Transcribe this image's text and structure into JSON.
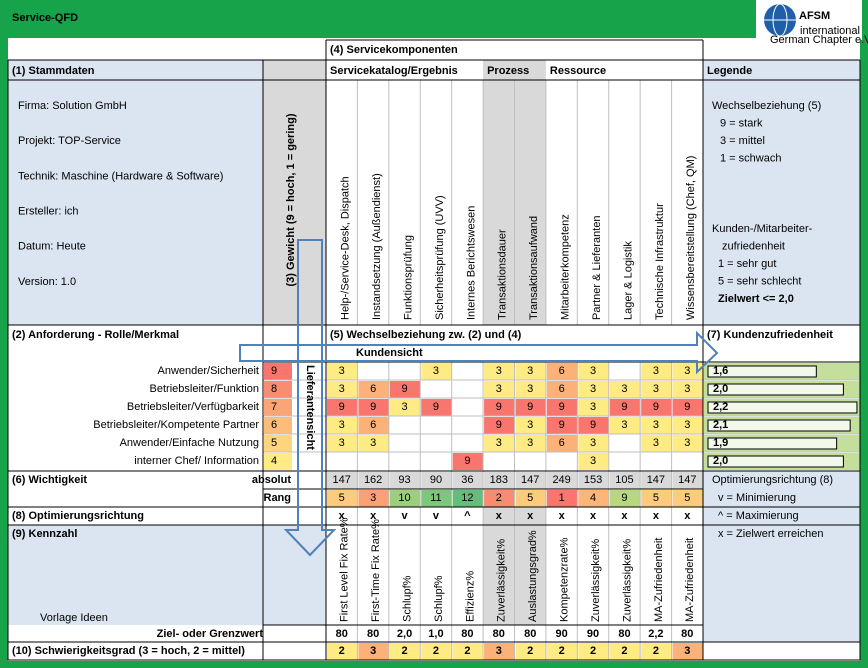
{
  "header": {
    "title": "Service-QFD",
    "logo": {
      "name": "AFSM",
      "line1": "international",
      "line2": "German Chapter e.V."
    }
  },
  "labels": {
    "stammdaten": "(1) Stammdaten",
    "anforderung": "(2) Anforderung - Rolle/Merkmal",
    "gewicht": "(3) Gewicht (9 = hoch, 1 = gering)",
    "servicekomponenten": "(4) Servicekomponenten",
    "wechselbeziehung": "(5) Wechselbeziehung zw. (2) und (4)",
    "wichtigkeit": "(6) Wichtigkeit",
    "absolut": "absolut",
    "rang": "Rang",
    "kundenzufriedenheit": "(7) Kundenzufriedenheit",
    "optimierungsrichtung": "(8) Optimierungsrichtung",
    "kennzahl": "(9) Kennzahl",
    "ziel": "Ziel- oder Grenzwert",
    "schwierigkeitsgrad": "(10) Schwierigkeitsgrad (3 = hoch, 2 = mittel)",
    "kundensicht": "Kundensicht",
    "lieferantensicht": "Lieferantensicht",
    "watermark": "Vorlage Ideen"
  },
  "stammdaten": [
    "Firma: Solution GmbH",
    "Projekt: TOP-Service",
    "Technik: Maschine (Hardware & Software)",
    "Ersteller: ich",
    "Datum: Heute",
    "Version: 1.0"
  ],
  "legend": {
    "title": "Legende",
    "wechsel": [
      "Wechselbeziehung (5)",
      "9 = stark",
      "3 = mittel",
      "1 = schwach"
    ],
    "zufriedenheit": [
      "Kunden-/Mitarbeiter-",
      "zufriedenheit",
      "1 = sehr gut",
      "5 = sehr schlecht"
    ],
    "zielwert": "Zielwert <= 2,0",
    "optimierung": [
      "Optimierungsrichtung (8)",
      "v = Minimierung",
      "^ = Maximierung",
      "x = Zielwert erreichen"
    ]
  },
  "groups": [
    {
      "name": "Servicekatalog/Ergebnis",
      "background": "#ffffff",
      "components": [
        "Help-/Service-Desk, Dispatch",
        "Instandsetzung (Außendienst)",
        "Funktionsprüfung",
        "Sicherheitsprüfung (UVV)",
        "Internes Berichtswesen"
      ]
    },
    {
      "name": "Prozess",
      "background": "#d9d9d9",
      "components": [
        "Transaktionsdauer",
        "Transaktionsaufwand"
      ]
    },
    {
      "name": "Ressource",
      "background": "#ffffff",
      "components": [
        "Mitarbeiterkompetenz",
        "Partner & Lieferanten",
        "Lager & Logistik",
        "Technische Infrastruktur",
        "Wissensbereitstellung (Chef, QM)"
      ]
    }
  ],
  "requirements": [
    {
      "name": "Anwender/Sicherheit",
      "weight": 9,
      "matrix": [
        3,
        null,
        null,
        3,
        null,
        3,
        3,
        6,
        3,
        null,
        3,
        3
      ],
      "satisfaction": {
        "value": 1.6,
        "label": "1,6"
      }
    },
    {
      "name": "Betriebsleiter/Funktion",
      "weight": 8,
      "matrix": [
        3,
        6,
        9,
        null,
        null,
        3,
        3,
        6,
        3,
        3,
        3,
        3
      ],
      "satisfaction": {
        "value": 2.0,
        "label": "2,0"
      }
    },
    {
      "name": "Betriebsleiter/Verfügbarkeit",
      "weight": 7,
      "matrix": [
        9,
        9,
        3,
        9,
        null,
        9,
        9,
        9,
        3,
        9,
        9,
        9
      ],
      "satisfaction": {
        "value": 2.2,
        "label": "2,2"
      }
    },
    {
      "name": "Betriebsleiter/Kompetente Partner",
      "weight": 6,
      "matrix": [
        3,
        6,
        null,
        null,
        null,
        9,
        3,
        9,
        9,
        3,
        3,
        3
      ],
      "satisfaction": {
        "value": 2.1,
        "label": "2,1"
      }
    },
    {
      "name": "Anwender/Einfache Nutzung",
      "weight": 5,
      "matrix": [
        3,
        3,
        null,
        null,
        null,
        3,
        3,
        6,
        3,
        null,
        3,
        3
      ],
      "satisfaction": {
        "value": 1.9,
        "label": "1,9"
      }
    },
    {
      "name": "interner Chef/ Information",
      "weight": 4,
      "matrix": [
        null,
        null,
        null,
        null,
        9,
        null,
        null,
        null,
        3,
        null,
        null,
        null
      ],
      "satisfaction": {
        "value": 2.0,
        "label": "2,0"
      }
    }
  ],
  "wichtigkeit": {
    "absolut": [
      147,
      162,
      93,
      90,
      36,
      183,
      147,
      249,
      153,
      105,
      147,
      147
    ],
    "rang": [
      5,
      3,
      10,
      11,
      12,
      2,
      5,
      1,
      4,
      9,
      5,
      5
    ]
  },
  "optimierung": [
    "x",
    "x",
    "v",
    "v",
    "^",
    "x",
    "x",
    "x",
    "x",
    "x",
    "x",
    "x"
  ],
  "kennzahlen": [
    "First Level Fix Rate%",
    "First-Time Fix Rate%",
    "Schlupf%",
    "Schlupf%",
    "Effizienz%",
    "Zuverlässigkeit%",
    "Auslastungsgrad%",
    "Kompetenzrate%",
    "Zuverlässigkeit%",
    "Zuverlässigkeit%",
    "MA-Zufriedenheit",
    "MA-Zufriedenheit"
  ],
  "ziel": [
    "80",
    "80",
    "2,0",
    "1,0",
    "80",
    "80",
    "80",
    "90",
    "90",
    "80",
    "2,2",
    "80"
  ],
  "schwierigkeit": [
    2,
    3,
    2,
    2,
    2,
    3,
    2,
    2,
    2,
    2,
    2,
    3
  ],
  "colors": {
    "frame": "#16a34a",
    "panel": "#dbe5f1",
    "shade": "#d9d9d9",
    "low": "#63be7b",
    "mid": "#ffeb84",
    "high": "#f8766d",
    "satisfaction": "#c4df9b",
    "arrow": "#4f81bd",
    "logo": "#1f5fa8"
  }
}
